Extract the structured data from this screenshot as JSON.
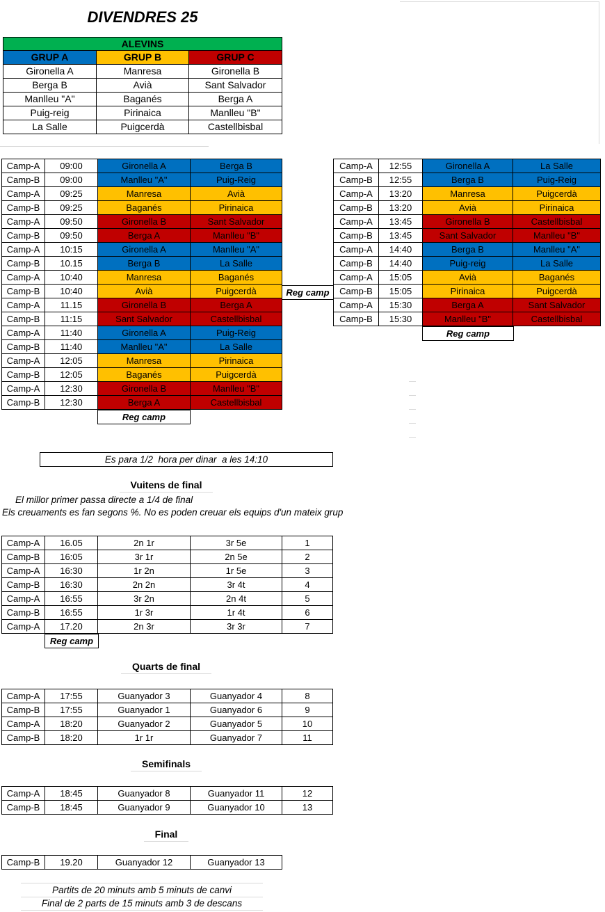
{
  "title": "DIVENDRES 25",
  "colors": {
    "A": "#0070C0",
    "B": "#FFC000",
    "C": "#C00000",
    "green": "#00B050"
  },
  "labels": {
    "reg_camp": "Reg camp"
  },
  "category_table": {
    "category": "ALEVINS",
    "groups": [
      {
        "name": "GRUP A",
        "key": "A",
        "teams": [
          "Gironella A",
          "Berga B",
          "Manlleu \"A\"",
          "Puig-reig",
          "La Salle"
        ]
      },
      {
        "name": "GRUP B",
        "key": "B",
        "teams": [
          "Manresa",
          "Avià",
          "Baganés",
          "Pirinaica",
          "Puigcerdà"
        ]
      },
      {
        "name": "GRUP C",
        "key": "C",
        "teams": [
          "Gironella B",
          "Sant Salvador",
          "Berga A",
          "Manlleu \"B\"",
          "Castellbisbal"
        ]
      }
    ]
  },
  "morning_schedule": {
    "rows": [
      {
        "camp": "Camp-A",
        "time": "09:00",
        "home": "Gironella A",
        "away": "Berga B",
        "group": "A"
      },
      {
        "camp": "Camp-B",
        "time": "09:00",
        "home": "Manlleu \"A\"",
        "away": "Puig-Reig",
        "group": "A"
      },
      {
        "camp": "Camp-A",
        "time": "09:25",
        "home": "Manresa",
        "away": "Avià",
        "group": "B"
      },
      {
        "camp": "Camp-B",
        "time": "09:25",
        "home": "Baganés",
        "away": "Pirinaica",
        "group": "B"
      },
      {
        "camp": "Camp-A",
        "time": "09:50",
        "home": "Gironella B",
        "away": "Sant Salvador",
        "group": "C"
      },
      {
        "camp": "Camp-B",
        "time": "09:50",
        "home": "Berga A",
        "away": "Manlleu \"B\"",
        "group": "C"
      },
      {
        "camp": "Camp-A",
        "time": "10:15",
        "home": "Gironella A",
        "away": "Manlleu \"A\"",
        "group": "A"
      },
      {
        "camp": "Camp-B",
        "time": "10.15",
        "home": "Berga B",
        "away": "La Salle",
        "group": "A"
      },
      {
        "camp": "Camp-A",
        "time": "10:40",
        "home": "Manresa",
        "away": "Baganés",
        "group": "B"
      },
      {
        "camp": "Camp-B",
        "time": "10:40",
        "home": "Avià",
        "away": "Puigcerdà",
        "group": "B"
      },
      {
        "camp": "Camp-A",
        "time": "11.15",
        "home": "Gironella B",
        "away": "Berga A",
        "group": "C"
      },
      {
        "camp": "Camp-B",
        "time": "11:15",
        "home": "Sant Salvador",
        "away": "Castellbisbal",
        "group": "C"
      },
      {
        "camp": "Camp-A",
        "time": "11:40",
        "home": "Gironella A",
        "away": "Puig-Reig",
        "group": "A"
      },
      {
        "camp": "Camp-B",
        "time": "11:40",
        "home": "Manlleu \"A\"",
        "away": "La Salle",
        "group": "A"
      },
      {
        "camp": "Camp-A",
        "time": "12:05",
        "home": "Manresa",
        "away": "Pirinaica",
        "group": "B"
      },
      {
        "camp": "Camp-B",
        "time": "12:05",
        "home": "Baganés",
        "away": "Puigcerdà",
        "group": "B"
      },
      {
        "camp": "Camp-A",
        "time": "12:30",
        "home": "Gironella B",
        "away": "Manlleu \"B\"",
        "group": "C"
      },
      {
        "camp": "Camp-B",
        "time": "12:30",
        "home": "Berga A",
        "away": "Castellbisbal",
        "group": "C"
      }
    ]
  },
  "afternoon_schedule": {
    "rows": [
      {
        "camp": "Camp-A",
        "time": "12:55",
        "home": "Gironella A",
        "away": "La Salle",
        "group": "A"
      },
      {
        "camp": "Camp-B",
        "time": "12:55",
        "home": "Berga B",
        "away": "Puig-Reig",
        "group": "A"
      },
      {
        "camp": "Camp-A",
        "time": "13:20",
        "home": "Manresa",
        "away": "Puigcerdà",
        "group": "B"
      },
      {
        "camp": "Camp-B",
        "time": "13:20",
        "home": "Avià",
        "away": "Pirinaica",
        "group": "B"
      },
      {
        "camp": "Camp-A",
        "time": "13:45",
        "home": "Gironella B",
        "away": "Castellbisbal",
        "group": "C"
      },
      {
        "camp": "Camp-B",
        "time": "13:45",
        "home": "Sant Salvador",
        "away": "Manlleu \"B\"",
        "group": "C"
      },
      {
        "camp": "Camp-A",
        "time": "14:40",
        "home": "Berga B",
        "away": "Manlleu \"A\"",
        "group": "A"
      },
      {
        "camp": "Camp-B",
        "time": "14:40",
        "home": "Puig-reig",
        "away": "La Salle",
        "group": "A"
      },
      {
        "camp": "Camp-A",
        "time": "15:05",
        "home": "Avià",
        "away": "Baganés",
        "group": "B"
      },
      {
        "camp": "Camp-B",
        "time": "15:05",
        "home": "Pirinaica",
        "away": "Puigcerdà",
        "group": "B"
      },
      {
        "camp": "Camp-A",
        "time": "15:30",
        "home": "Berga A",
        "away": "Sant Salvador",
        "group": "C"
      },
      {
        "camp": "Camp-B",
        "time": "15:30",
        "home": "Manlleu \"B\"",
        "away": "Castellbisbal",
        "group": "C"
      }
    ]
  },
  "lunch_note": "Es para 1/2  hora per dinar  a les 14:10",
  "vuitens": {
    "heading": "Vuitens de final",
    "note1": "El millor primer passa directe a 1/4 de final",
    "note2": "Els creuaments es fan segons %. No es poden creuar els equips d'un mateix grup",
    "rows": [
      {
        "camp": "Camp-A",
        "time": "16.05",
        "home": "2n 1r",
        "away": "3r 5e",
        "match": "1"
      },
      {
        "camp": "Camp-B",
        "time": "16:05",
        "home": "3r 1r",
        "away": "2n 5e",
        "match": "2"
      },
      {
        "camp": "Camp-A",
        "time": "16:30",
        "home": "1r 2n",
        "away": "1r 5e",
        "match": "3"
      },
      {
        "camp": "Camp-B",
        "time": "16:30",
        "home": "2n 2n",
        "away": "3r 4t",
        "match": "4"
      },
      {
        "camp": "Camp-A",
        "time": "16:55",
        "home": "3r 2n",
        "away": "2n 4t",
        "match": "5"
      },
      {
        "camp": "Camp-B",
        "time": "16:55",
        "home": "1r 3r",
        "away": "1r 4t",
        "match": "6"
      },
      {
        "camp": "Camp-A",
        "time": "17.20",
        "home": "2n 3r",
        "away": "3r 3r",
        "match": "7"
      }
    ]
  },
  "quarts": {
    "heading": "Quarts de final",
    "rows": [
      {
        "camp": "Camp-A",
        "time": "17:55",
        "home": "Guanyador 3",
        "away": "Guanyador 4",
        "match": "8"
      },
      {
        "camp": "Camp-B",
        "time": "17:55",
        "home": "Guanyador 1",
        "away": "Guanyador 6",
        "match": "9"
      },
      {
        "camp": "Camp-A",
        "time": "18:20",
        "home": "Guanyador 2",
        "away": "Guanyador 5",
        "match": "10"
      },
      {
        "camp": "Camp-B",
        "time": "18:20",
        "home": "1r 1r",
        "away": "Guanyador 7",
        "match": "11"
      }
    ]
  },
  "semifinals": {
    "heading": "Semifinals",
    "rows": [
      {
        "camp": "Camp-A",
        "time": "18:45",
        "home": "Guanyador 8",
        "away": "Guanyador 11",
        "match": "12"
      },
      {
        "camp": "Camp-B",
        "time": "18:45",
        "home": "Guanyador 9",
        "away": "Guanyador 10",
        "match": "13"
      }
    ]
  },
  "final": {
    "heading": "Final",
    "rows": [
      {
        "camp": "Camp-B",
        "time": "19.20",
        "home": "Guanyador 12",
        "away": "Guanyador 13"
      }
    ]
  },
  "footnotes": [
    "Partits de 20 minuts amb 5 minuts de canvi",
    "Final de 2 parts de 15 minuts amb 3 de descans"
  ]
}
